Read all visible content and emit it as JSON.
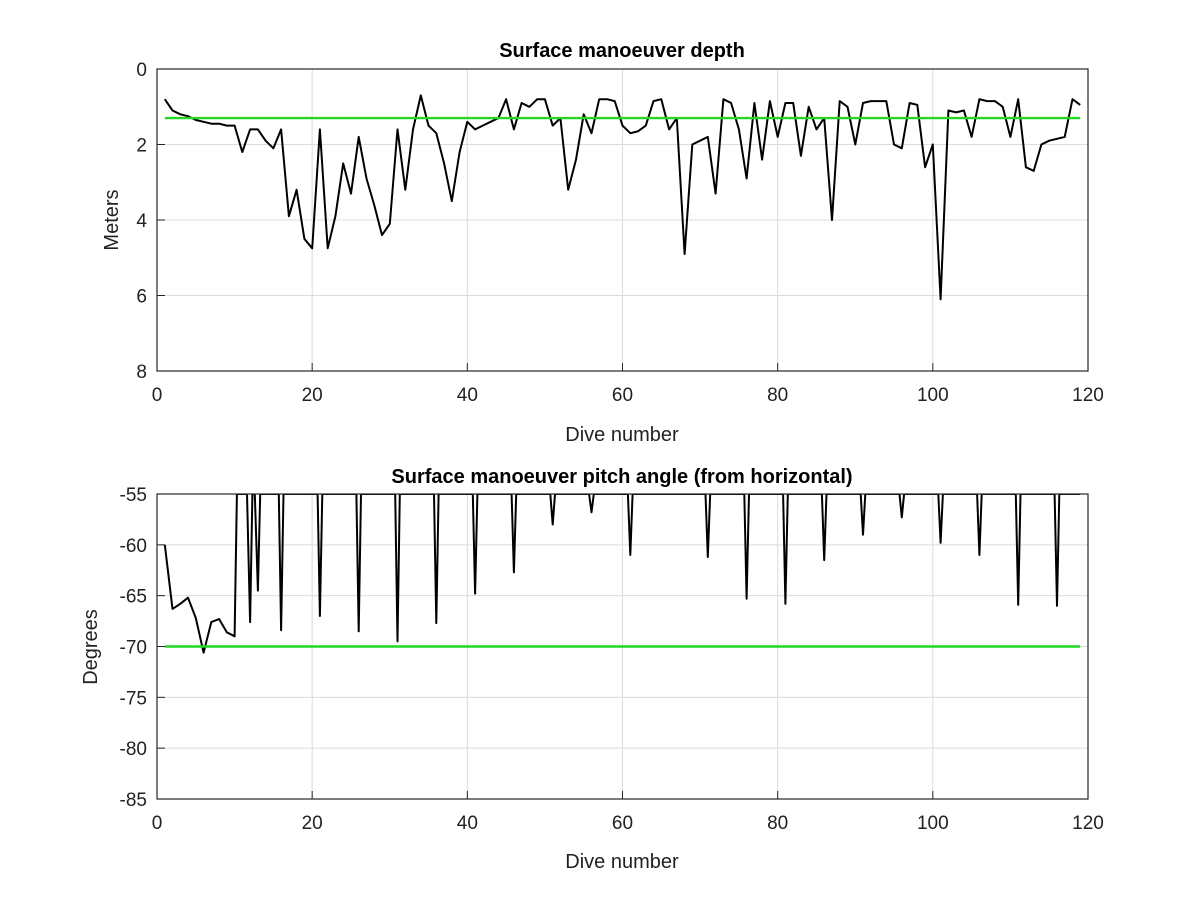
{
  "chart_data": [
    {
      "type": "line",
      "title": "Surface manoeuver depth",
      "xlabel": "Dive number",
      "ylabel": "Meters",
      "xlim": [
        0,
        120
      ],
      "ylim": [
        0,
        8
      ],
      "y_reversed": true,
      "grid": true,
      "xticks": [
        "0",
        "20",
        "40",
        "60",
        "80",
        "100",
        "120"
      ],
      "yticks": [
        "0",
        "2",
        "4",
        "6",
        "8"
      ],
      "colors": {
        "data": "#000000",
        "threshold": "#22d822"
      },
      "series": [
        {
          "x": [
            1,
            2,
            3,
            4,
            5,
            6,
            7,
            8,
            9,
            10,
            11,
            12,
            13,
            14,
            15,
            16,
            17,
            18,
            19,
            20,
            21,
            22,
            23,
            24,
            25,
            26,
            27,
            28,
            29,
            30,
            31,
            32,
            33,
            34,
            35,
            36,
            37,
            38,
            39,
            40,
            41,
            42,
            43,
            44,
            45,
            46,
            47,
            48,
            49,
            50,
            51,
            52,
            53,
            54,
            55,
            56,
            57,
            58,
            59,
            60,
            61,
            62,
            63,
            64,
            65,
            66,
            67,
            68,
            69,
            70,
            71,
            72,
            73,
            74,
            75,
            76,
            77,
            78,
            79,
            80,
            81,
            82,
            83,
            84,
            85,
            86,
            87,
            88,
            89,
            90,
            91,
            92,
            93,
            94,
            95,
            96,
            97,
            98,
            99,
            100,
            101,
            102,
            103,
            104,
            105,
            106,
            107,
            108,
            109,
            110,
            111,
            112,
            113,
            114,
            115,
            116,
            117,
            118,
            119
          ],
          "y": [
            0.8,
            1.1,
            1.2,
            1.25,
            1.35,
            1.4,
            1.45,
            1.45,
            1.5,
            1.5,
            2.2,
            1.6,
            1.6,
            1.9,
            2.1,
            1.6,
            3.9,
            3.2,
            4.5,
            4.75,
            1.6,
            4.75,
            3.9,
            2.5,
            3.3,
            1.8,
            2.9,
            3.6,
            4.4,
            4.1,
            1.6,
            3.2,
            1.6,
            0.7,
            1.5,
            1.7,
            2.5,
            3.5,
            2.2,
            1.4,
            1.6,
            1.5,
            1.4,
            1.3,
            0.8,
            1.6,
            0.9,
            1.0,
            0.8,
            0.8,
            1.5,
            1.3,
            3.2,
            2.4,
            1.2,
            1.7,
            0.8,
            0.8,
            0.85,
            1.5,
            1.7,
            1.65,
            1.5,
            0.85,
            0.8,
            1.6,
            1.3,
            4.9,
            2.0,
            1.9,
            1.8,
            3.3,
            0.8,
            0.9,
            1.6,
            2.9,
            0.9,
            2.4,
            0.85,
            1.8,
            0.9,
            0.9,
            2.3,
            1.0,
            1.6,
            1.3,
            4.0,
            0.85,
            1.0,
            2.0,
            0.9,
            0.85,
            0.85,
            0.85,
            2.0,
            2.1,
            0.9,
            0.95,
            2.6,
            2.0,
            6.1,
            1.1,
            1.15,
            1.1,
            1.8,
            0.8,
            0.85,
            0.85,
            1.0,
            1.8,
            0.8,
            2.6,
            2.7,
            2.0,
            1.9,
            1.85,
            1.8,
            0.8,
            0.95
          ]
        },
        {
          "x": [
            1,
            119
          ],
          "y": [
            1.3,
            1.3
          ]
        }
      ]
    },
    {
      "type": "line",
      "title": "Surface manoeuver pitch angle (from horizontal)",
      "xlabel": "Dive number",
      "ylabel": "Degrees",
      "xlim": [
        0,
        120
      ],
      "ylim": [
        -85,
        -55
      ],
      "grid": true,
      "xticks": [
        "0",
        "20",
        "40",
        "60",
        "80",
        "100",
        "120"
      ],
      "yticks": [
        "-55",
        "-60",
        "-65",
        "-70",
        "-75",
        "-80",
        "-85"
      ],
      "colors": {
        "data": "#000000",
        "threshold": "#22d822"
      },
      "series": [
        {
          "x": [
            1,
            2,
            3,
            4,
            5,
            6,
            7,
            8,
            9,
            10,
            10.3,
            10.6,
            11,
            11.3,
            11.6,
            12,
            12.3,
            12.6,
            13,
            13.3,
            13.6,
            14,
            15,
            15.7,
            16,
            16.3,
            17,
            20,
            20.7,
            21,
            21.3,
            22,
            25,
            25.7,
            26,
            26.3,
            27,
            30,
            30.7,
            31,
            31.3,
            32,
            35,
            35.7,
            36,
            36.3,
            37,
            40,
            40.7,
            41,
            41.3,
            42,
            45,
            45.7,
            46,
            46.3,
            47,
            50,
            50.7,
            51,
            51.3,
            52,
            55,
            55.7,
            56,
            56.3,
            57,
            60,
            60.7,
            61,
            61.3,
            62,
            70,
            70.7,
            71,
            71.3,
            72,
            75,
            75.7,
            76,
            76.3,
            77,
            80,
            80.7,
            81,
            81.3,
            82,
            85,
            85.7,
            86,
            86.3,
            87,
            90,
            90.7,
            91,
            91.3,
            92,
            95,
            95.7,
            96,
            96.3,
            97,
            100,
            100.7,
            101,
            101.3,
            102,
            105,
            105.7,
            106,
            106.3,
            107,
            110,
            110.7,
            111,
            111.3,
            112,
            115,
            115.7,
            116,
            116.3,
            117,
            119
          ],
          "y": [
            -60,
            -66.3,
            -65.8,
            -65.2,
            -67.2,
            -70.6,
            -67.6,
            -67.3,
            -68.6,
            -69,
            -55,
            -55,
            -55,
            -55,
            -55,
            -67.6,
            -55,
            -55,
            -64.5,
            -55,
            -55,
            -55,
            -55,
            -55,
            -68.4,
            -55,
            -55,
            -55,
            -55,
            -67,
            -55,
            -55,
            -55,
            -55,
            -68.5,
            -55,
            -55,
            -55,
            -55,
            -69.5,
            -55,
            -55,
            -55,
            -55,
            -67.7,
            -55,
            -55,
            -55,
            -55,
            -64.8,
            -55,
            -55,
            -55,
            -55,
            -62.7,
            -55,
            -55,
            -55,
            -55,
            -58,
            -55,
            -55,
            -55,
            -55,
            -56.8,
            -55,
            -55,
            -55,
            -55,
            -61,
            -55,
            -55,
            -55,
            -55,
            -61.2,
            -55,
            -55,
            -55,
            -55,
            -65.3,
            -55,
            -55,
            -55,
            -55,
            -65.8,
            -55,
            -55,
            -55,
            -55,
            -61.5,
            -55,
            -55,
            -55,
            -55,
            -59,
            -55,
            -55,
            -55,
            -55,
            -57.3,
            -55,
            -55,
            -55,
            -55,
            -59.8,
            -55,
            -55,
            -55,
            -55,
            -61,
            -55,
            -55,
            -55,
            -55,
            -65.9,
            -55,
            -55,
            -55,
            -55,
            -66,
            -55,
            -55,
            -55
          ]
        },
        {
          "x": [
            1,
            119
          ],
          "y": [
            -70,
            -70
          ]
        }
      ]
    }
  ]
}
